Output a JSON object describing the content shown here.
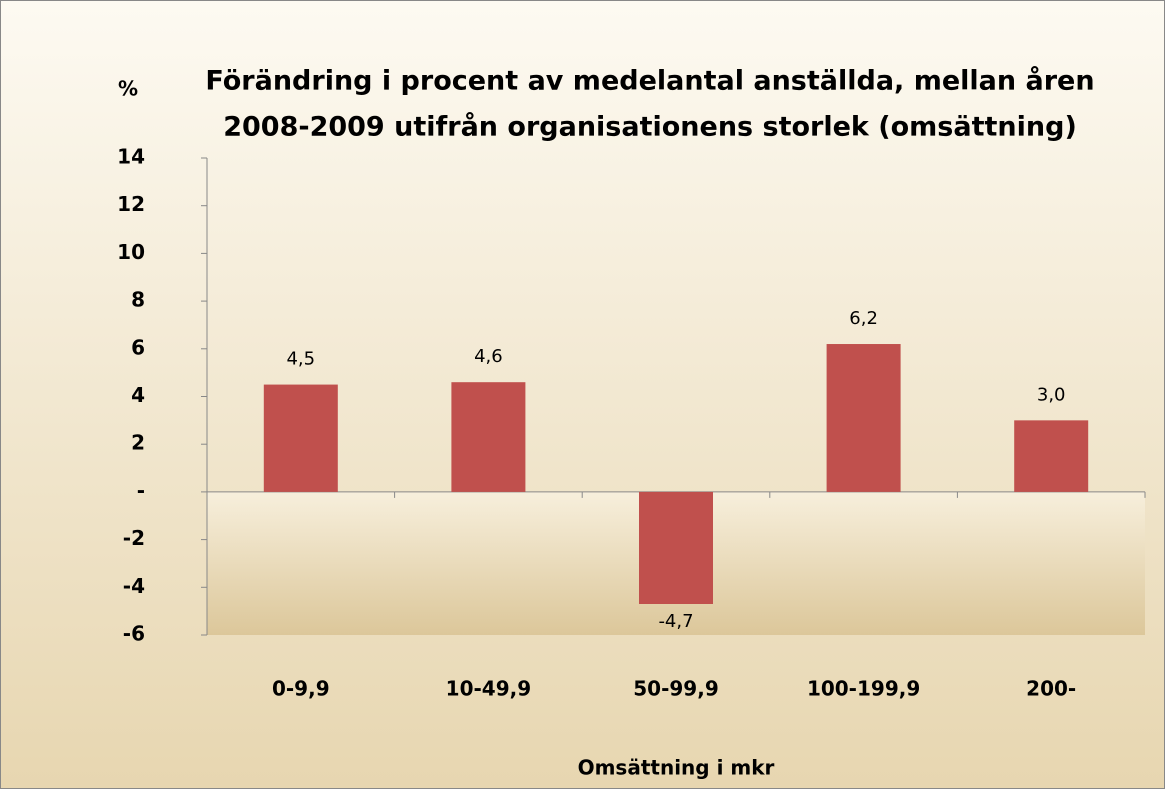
{
  "chart_data": {
    "type": "bar",
    "title": [
      "Förändring i procent av medelantal anställda, mellan åren",
      "2008-2009  utifrån organisationens storlek  (omsättning)"
    ],
    "y_label": "%",
    "x_label": "Omsättning  i mkr",
    "categories": [
      "0-9,9",
      "10-49,9",
      "50-99,9",
      "100-199,9",
      "200-"
    ],
    "values": [
      4.5,
      4.6,
      -4.7,
      6.2,
      3.0
    ],
    "value_labels": [
      "4,5",
      "4,6",
      "-4,7",
      "6,2",
      "3,0"
    ],
    "color": "#c0504d",
    "ylim": [
      -6,
      14
    ],
    "yticks": [
      -6,
      -4,
      -2,
      {
        "value": 0,
        "label": "-"
      },
      2,
      4,
      6,
      8,
      10,
      12,
      14
    ]
  }
}
